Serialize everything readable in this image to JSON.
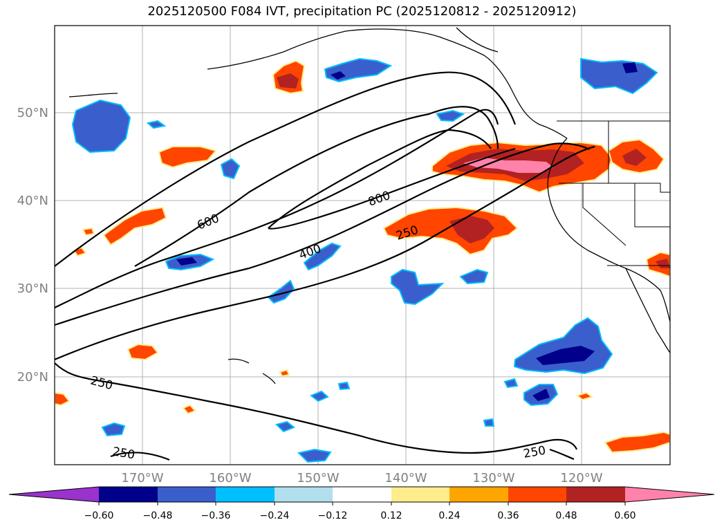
{
  "title": "2025120500 F084 IVT, precipitation PC (2025120812 - 2025120912)",
  "map": {
    "lon_labels": [
      "170°W",
      "160°W",
      "150°W",
      "140°W",
      "130°W",
      "120°W"
    ],
    "lat_labels": [
      "50°N",
      "40°N",
      "30°N",
      "20°N"
    ],
    "lon_range": [
      "180°",
      "110°W"
    ],
    "lat_range": [
      "10°N",
      "60°N"
    ],
    "grid": true,
    "contour_labels": [
      "250",
      "400",
      "600",
      "800",
      "250",
      "250",
      "250"
    ]
  },
  "colorbar": {
    "tick_labels": [
      "−0.60",
      "−0.48",
      "−0.36",
      "−0.24",
      "−0.12",
      "0.12",
      "0.24",
      "0.36",
      "0.48",
      "0.60"
    ],
    "colors": [
      "#9a32cd",
      "#00008b",
      "#3a5fcd",
      "#00bfff",
      "#b2dfee",
      "#ffffff",
      "#ffec8b",
      "#ffa500",
      "#ff4500",
      "#b22222",
      "#ff82ab",
      "#ff82ab"
    ],
    "extend": "both"
  },
  "colors": {
    "contour": "#000000",
    "coast": "#000000",
    "grid": "#b0b0b0",
    "tick_text": "#808080"
  }
}
